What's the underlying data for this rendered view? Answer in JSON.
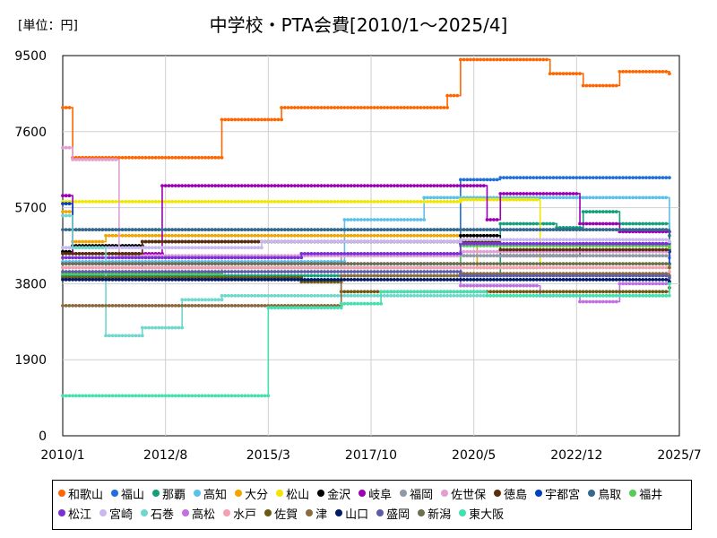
{
  "chart_data": {
    "type": "line",
    "title": "中学校・PTA会費[2010/1～2025/4]",
    "unit_label": "[単位：円]",
    "xlabel": "",
    "ylabel": "",
    "xlim": [
      "2010/1",
      "2025/7"
    ],
    "ylim": [
      0,
      9500
    ],
    "x_ticks": [
      "2010/1",
      "2012/8",
      "2015/3",
      "2017/10",
      "2020/5",
      "2022/12",
      "2025/7"
    ],
    "y_ticks": [
      0,
      1900,
      3800,
      5700,
      7600,
      9500
    ],
    "grid": true,
    "legend_position": "bottom",
    "series": [
      {
        "name": "和歌山",
        "color": "#ff6600",
        "points": [
          [
            "2010/1",
            8200
          ],
          [
            "2010/4",
            6950
          ],
          [
            "2014/1",
            7900
          ],
          [
            "2015/7",
            8200
          ],
          [
            "2019/9",
            8500
          ],
          [
            "2020/1",
            8500
          ],
          [
            "2020/1",
            9400
          ],
          [
            "2021/1",
            9400
          ],
          [
            "2022/4",
            9050
          ],
          [
            "2023/2",
            8750
          ],
          [
            "2024/1",
            9100
          ],
          [
            "2025/4",
            9050
          ]
        ]
      },
      {
        "name": "福山",
        "color": "#1f6fd6",
        "points": [
          [
            "2010/1",
            4300
          ],
          [
            "2012/1",
            4200
          ],
          [
            "2020/1",
            6400
          ],
          [
            "2021/1",
            6450
          ],
          [
            "2025/4",
            6450
          ]
        ]
      },
      {
        "name": "那覇",
        "color": "#12a07a",
        "points": [
          [
            "2010/1",
            4000
          ],
          [
            "2020/1",
            4000
          ],
          [
            "2021/1",
            5300
          ],
          [
            "2022/6",
            5200
          ],
          [
            "2023/2",
            5600
          ],
          [
            "2024/1",
            5300
          ],
          [
            "2025/4",
            5000
          ]
        ]
      },
      {
        "name": "高知",
        "color": "#5bc0eb",
        "points": [
          [
            "2010/1",
            4350
          ],
          [
            "2016/1",
            4350
          ],
          [
            "2017/2",
            5400
          ],
          [
            "2019/2",
            5950
          ],
          [
            "2021/1",
            5950
          ],
          [
            "2025/4",
            4450
          ]
        ]
      },
      {
        "name": "大分",
        "color": "#f0a500",
        "points": [
          [
            "2010/1",
            5600
          ],
          [
            "2010/4",
            4850
          ],
          [
            "2011/2",
            5000
          ],
          [
            "2020/1",
            5000
          ],
          [
            "2020/6",
            4200
          ],
          [
            "2022/1",
            4750
          ],
          [
            "2025/4",
            4750
          ]
        ]
      },
      {
        "name": "松山",
        "color": "#f2e600",
        "points": [
          [
            "2010/1",
            5850
          ],
          [
            "2017/2",
            5850
          ],
          [
            "2020/1",
            5900
          ],
          [
            "2021/1",
            5900
          ],
          [
            "2022/1",
            4300
          ],
          [
            "2025/4",
            4250
          ]
        ]
      },
      {
        "name": "金沢",
        "color": "#000000",
        "points": [
          [
            "2010/1",
            4600
          ],
          [
            "2010/4",
            4750
          ],
          [
            "2012/1",
            4850
          ],
          [
            "2020/1",
            5000
          ],
          [
            "2021/1",
            4500
          ],
          [
            "2022/1",
            4500
          ],
          [
            "2023/1",
            4800
          ],
          [
            "2025/4",
            4600
          ]
        ]
      },
      {
        "name": "岐阜",
        "color": "#9b00b4",
        "points": [
          [
            "2010/1",
            6000
          ],
          [
            "2010/4",
            4550
          ],
          [
            "2012/7",
            4500
          ],
          [
            "2012/7",
            6250
          ],
          [
            "2020/1",
            6250
          ],
          [
            "2020/9",
            5400
          ],
          [
            "2021/1",
            6050
          ],
          [
            "2023/1",
            5300
          ],
          [
            "2024/1",
            5100
          ],
          [
            "2025/4",
            5100
          ]
        ]
      },
      {
        "name": "福岡",
        "color": "#8e9aa6",
        "points": [
          [
            "2010/1",
            4200
          ],
          [
            "2017/1",
            4500
          ],
          [
            "2020/1",
            4500
          ],
          [
            "2025/4",
            4450
          ]
        ]
      },
      {
        "name": "佐世保",
        "color": "#e09fd6",
        "points": [
          [
            "2010/1",
            7200
          ],
          [
            "2010/4",
            6900
          ],
          [
            "2011/6",
            6900
          ],
          [
            "2011/6",
            4500
          ],
          [
            "2020/1",
            4600
          ],
          [
            "2025/4",
            4500
          ]
        ]
      },
      {
        "name": "徳島",
        "color": "#5a2d0c",
        "points": [
          [
            "2010/1",
            4550
          ],
          [
            "2012/1",
            4850
          ],
          [
            "2019/1",
            4850
          ],
          [
            "2021/1",
            4650
          ],
          [
            "2025/4",
            4650
          ]
        ]
      },
      {
        "name": "宇都宮",
        "color": "#0040c0",
        "points": [
          [
            "2010/1",
            5800
          ],
          [
            "2010/4",
            5150
          ],
          [
            "2020/1",
            5150
          ],
          [
            "2025/4",
            4300
          ]
        ]
      },
      {
        "name": "鳥取",
        "color": "#35688a",
        "points": [
          [
            "2010/1",
            5150
          ],
          [
            "2020/1",
            5150
          ],
          [
            "2025/4",
            4800
          ]
        ]
      },
      {
        "name": "福井",
        "color": "#55cc55",
        "points": [
          [
            "2010/1",
            4050
          ],
          [
            "2014/1",
            4200
          ],
          [
            "2019/1",
            4300
          ],
          [
            "2020/1",
            4750
          ],
          [
            "2025/4",
            4700
          ]
        ]
      },
      {
        "name": "松江",
        "color": "#7b2fd9",
        "points": [
          [
            "2010/1",
            4450
          ],
          [
            "2014/1",
            4450
          ],
          [
            "2016/1",
            4550
          ],
          [
            "2020/1",
            4800
          ],
          [
            "2025/4",
            4850
          ]
        ]
      },
      {
        "name": "宮崎",
        "color": "#c8b8f0",
        "points": [
          [
            "2010/1",
            4700
          ],
          [
            "2015/1",
            4850
          ],
          [
            "2020/1",
            4900
          ],
          [
            "2025/4",
            4850
          ]
        ]
      },
      {
        "name": "石巻",
        "color": "#6ed8cc",
        "points": [
          [
            "2010/1",
            5500
          ],
          [
            "2010/4",
            4700
          ],
          [
            "2011/2",
            4700
          ],
          [
            "2011/2",
            2500
          ],
          [
            "2012/1",
            2700
          ],
          [
            "2013/1",
            3400
          ],
          [
            "2014/1",
            3500
          ],
          [
            "2020/1",
            3500
          ],
          [
            "2025/4",
            3500
          ]
        ]
      },
      {
        "name": "高松",
        "color": "#c070e0",
        "points": [
          [
            "2010/1",
            4300
          ],
          [
            "2019/1",
            4300
          ],
          [
            "2020/1",
            3750
          ],
          [
            "2022/1",
            3500
          ],
          [
            "2023/1",
            3350
          ],
          [
            "2024/1",
            3800
          ],
          [
            "2025/4",
            3850
          ]
        ]
      },
      {
        "name": "水戸",
        "color": "#f4a0b0",
        "points": [
          [
            "2010/1",
            4200
          ],
          [
            "2020/1",
            4200
          ],
          [
            "2025/4",
            4100
          ]
        ]
      },
      {
        "name": "佐賀",
        "color": "#6b5a10",
        "points": [
          [
            "2010/1",
            3950
          ],
          [
            "2016/1",
            3850
          ],
          [
            "2017/1",
            3600
          ],
          [
            "2020/1",
            3600
          ],
          [
            "2025/4",
            3700
          ]
        ]
      },
      {
        "name": "津",
        "color": "#8b6b3d",
        "points": [
          [
            "2010/1",
            3250
          ],
          [
            "2017/1",
            3250
          ],
          [
            "2017/1",
            4000
          ],
          [
            "2020/1",
            4050
          ],
          [
            "2025/4",
            4000
          ]
        ]
      },
      {
        "name": "山口",
        "color": "#001a66",
        "points": [
          [
            "2010/1",
            3900
          ],
          [
            "2020/1",
            3900
          ],
          [
            "2025/4",
            3850
          ]
        ]
      },
      {
        "name": "盛岡",
        "color": "#5c5ca8",
        "points": [
          [
            "2010/1",
            4100
          ],
          [
            "2020/1",
            4000
          ],
          [
            "2025/4",
            3950
          ]
        ]
      },
      {
        "name": "新潟",
        "color": "#6b7050",
        "points": [
          [
            "2010/1",
            4300
          ],
          [
            "2020/1",
            4300
          ],
          [
            "2025/4",
            4200
          ]
        ]
      },
      {
        "name": "東大阪",
        "color": "#44e0b0",
        "points": [
          [
            "2010/1",
            1000
          ],
          [
            "2015/3",
            1000
          ],
          [
            "2015/3",
            3200
          ],
          [
            "2017/1",
            3300
          ],
          [
            "2018/1",
            3600
          ],
          [
            "2020/1",
            3600
          ],
          [
            "2020/9",
            3500
          ],
          [
            "2025/4",
            3800
          ]
        ]
      }
    ]
  }
}
